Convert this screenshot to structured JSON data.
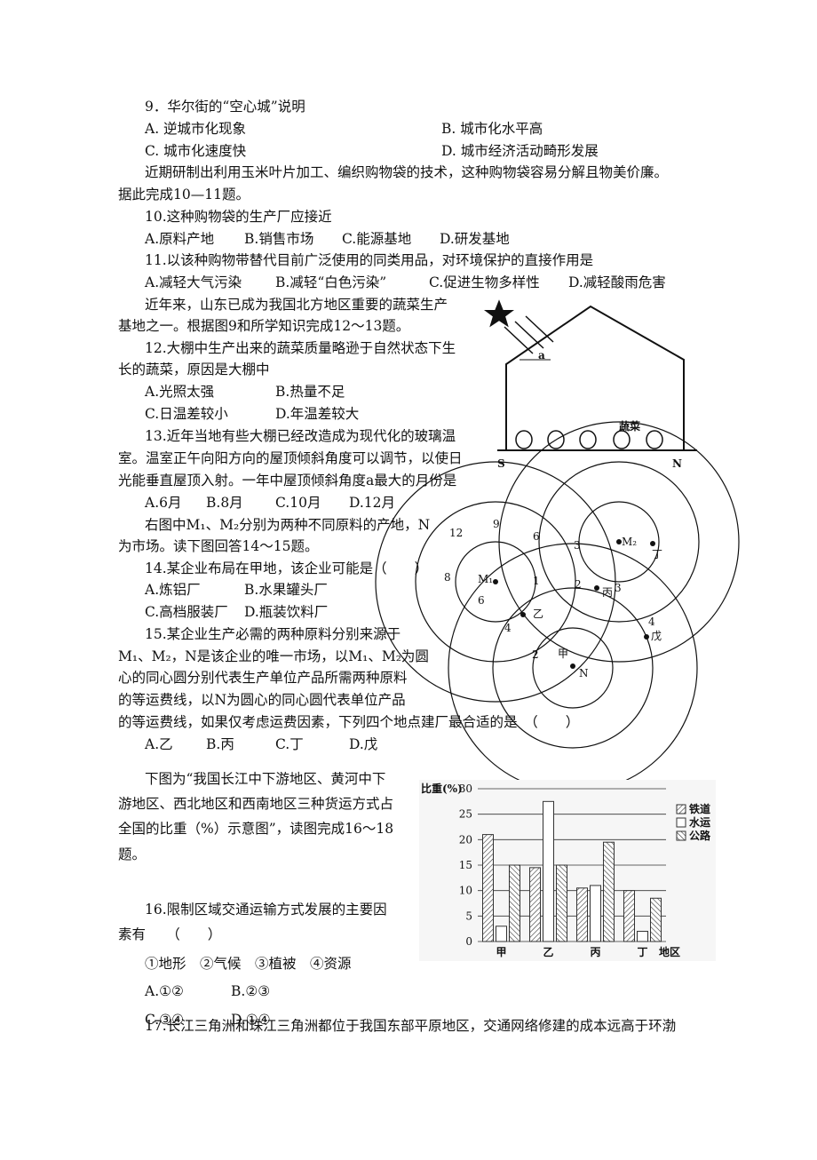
{
  "lines": [
    [
      "9．华尔街的“空心城”说明"
    ],
    [
      "A. 逆城市化现象",
      "B. 城市化水平高"
    ],
    [
      "C. 城市化速度快",
      "D. 城市经济活动畸形发展"
    ],
    [
      "近期研制出利用玉米叶片加工、编织购物袋的技术，这种购物袋容易分解且物美价廉。"
    ],
    [
      "据此完成10—11题。"
    ],
    [
      "10.这种购物袋的生产厂应接近"
    ],
    [
      "A.原料产地",
      "B.销售市场",
      "C.能源基地",
      "D.研发基地"
    ],
    [
      "11.以该种购物带替代目前广泛使用的同类用品，对环境保护的直接作用是"
    ],
    [
      "A.减轻大气污染",
      "B.减轻“白色污染”",
      "C.促进生物多样性",
      "D.减轻酸雨危害"
    ],
    [
      "近年来，山东已成为我国北方地区重要的蔬菜生产"
    ],
    [
      "基地之一。根据图9和所学知识完成12～13题。"
    ],
    [
      "12.大棚中生产出来的蔬菜质量略逊于自然状态下生"
    ],
    [
      "长的蔬菜，原因是大棚中"
    ],
    [
      "A.光照太强",
      "B.热量不足"
    ],
    [
      "C.日温差较小",
      "D.年温差较大"
    ],
    [
      "13.近年当地有些大棚已经改造成为现代化的玻璃温"
    ],
    [
      "室。温室正午向阳方向的屋顶倾斜角度可以调节，以使日"
    ],
    [
      "光能垂直屋顶入射。一年中屋顶倾斜角度a最大的月份是"
    ],
    [
      "A.6月",
      "B.8月",
      "C.10月",
      "D.12月"
    ],
    [
      "右图中M₁、M₂分别为两种不同原料的产地，N"
    ],
    [
      "为市场。读下图回答14～15题。"
    ],
    [
      "14.某企业布局在甲地，该企业可能是（　　）"
    ],
    [
      "A.炼铝厂",
      "B.水果罐头厂"
    ],
    [
      "C.高档服装厂",
      "D.瓶装饮料厂"
    ],
    [
      "15.某企业生产必需的两种原料分别来源于"
    ],
    [
      "M₁、M₂，N是该企业的唯一市场，以M₁、M₂为圆"
    ],
    [
      "心的同心圆分别代表生产单位产品所需两种原料"
    ],
    [
      "的等运费线，以N为圆心的同心圆代表单位产品"
    ],
    [
      "的等运费线，如果仅考虑运费因素，下列四个地点建厂最合适的是　（　　）"
    ],
    [
      "A.乙",
      "B.丙",
      "C.丁",
      "D.戊"
    ],
    [
      "下图为“我国长江中下游地区、黄河中下"
    ],
    [
      "游地区、西北地区和西南地区三种货运方式占"
    ],
    [
      "全国的比重（%）示意图”，读图完成16～18"
    ],
    [
      "题。"
    ],
    [
      "16.限制区域交通运输方式发展的主要因"
    ],
    [
      "素有　　（　　）"
    ],
    [
      "①地形　②气候　③植被　④资源"
    ],
    [
      "A.①②",
      "B.②③"
    ],
    [
      "C.③④",
      "D.①④"
    ],
    [
      "17.长江三角洲和珠江三角洲都位于我国东部平原地区，交通网络修建的成本远高于环渤"
    ]
  ],
  "greenhouse": {
    "angle": "a",
    "crop": "蔬菜",
    "south": "S",
    "north": "N"
  },
  "map_labels": [
    "12",
    "9",
    "6",
    "3",
    "M₂",
    "丁",
    "8",
    "M₁",
    "1",
    "2",
    "丙",
    "3",
    "6",
    "乙",
    "4",
    "4",
    "戊",
    "2",
    "甲",
    "N"
  ],
  "chart_data": {
    "type": "bar",
    "y_label": "比重(%)",
    "x_label": "地区",
    "categories": [
      "甲",
      "乙",
      "丙",
      "丁"
    ],
    "series": [
      {
        "name": "铁道",
        "color": "#333333",
        "pattern": "hatch",
        "values": [
          21,
          14.5,
          10.5,
          10
        ]
      },
      {
        "name": "水运",
        "color": "#333333",
        "pattern": "none",
        "values": [
          3,
          27.5,
          11,
          2
        ]
      },
      {
        "name": "公路",
        "color": "#333333",
        "pattern": "back-hatch",
        "values": [
          15,
          15,
          19.5,
          8.5
        ]
      }
    ],
    "ylim": [
      0,
      30
    ],
    "yticks": [
      0,
      5,
      10,
      15,
      20,
      25,
      30
    ],
    "grid": true
  }
}
